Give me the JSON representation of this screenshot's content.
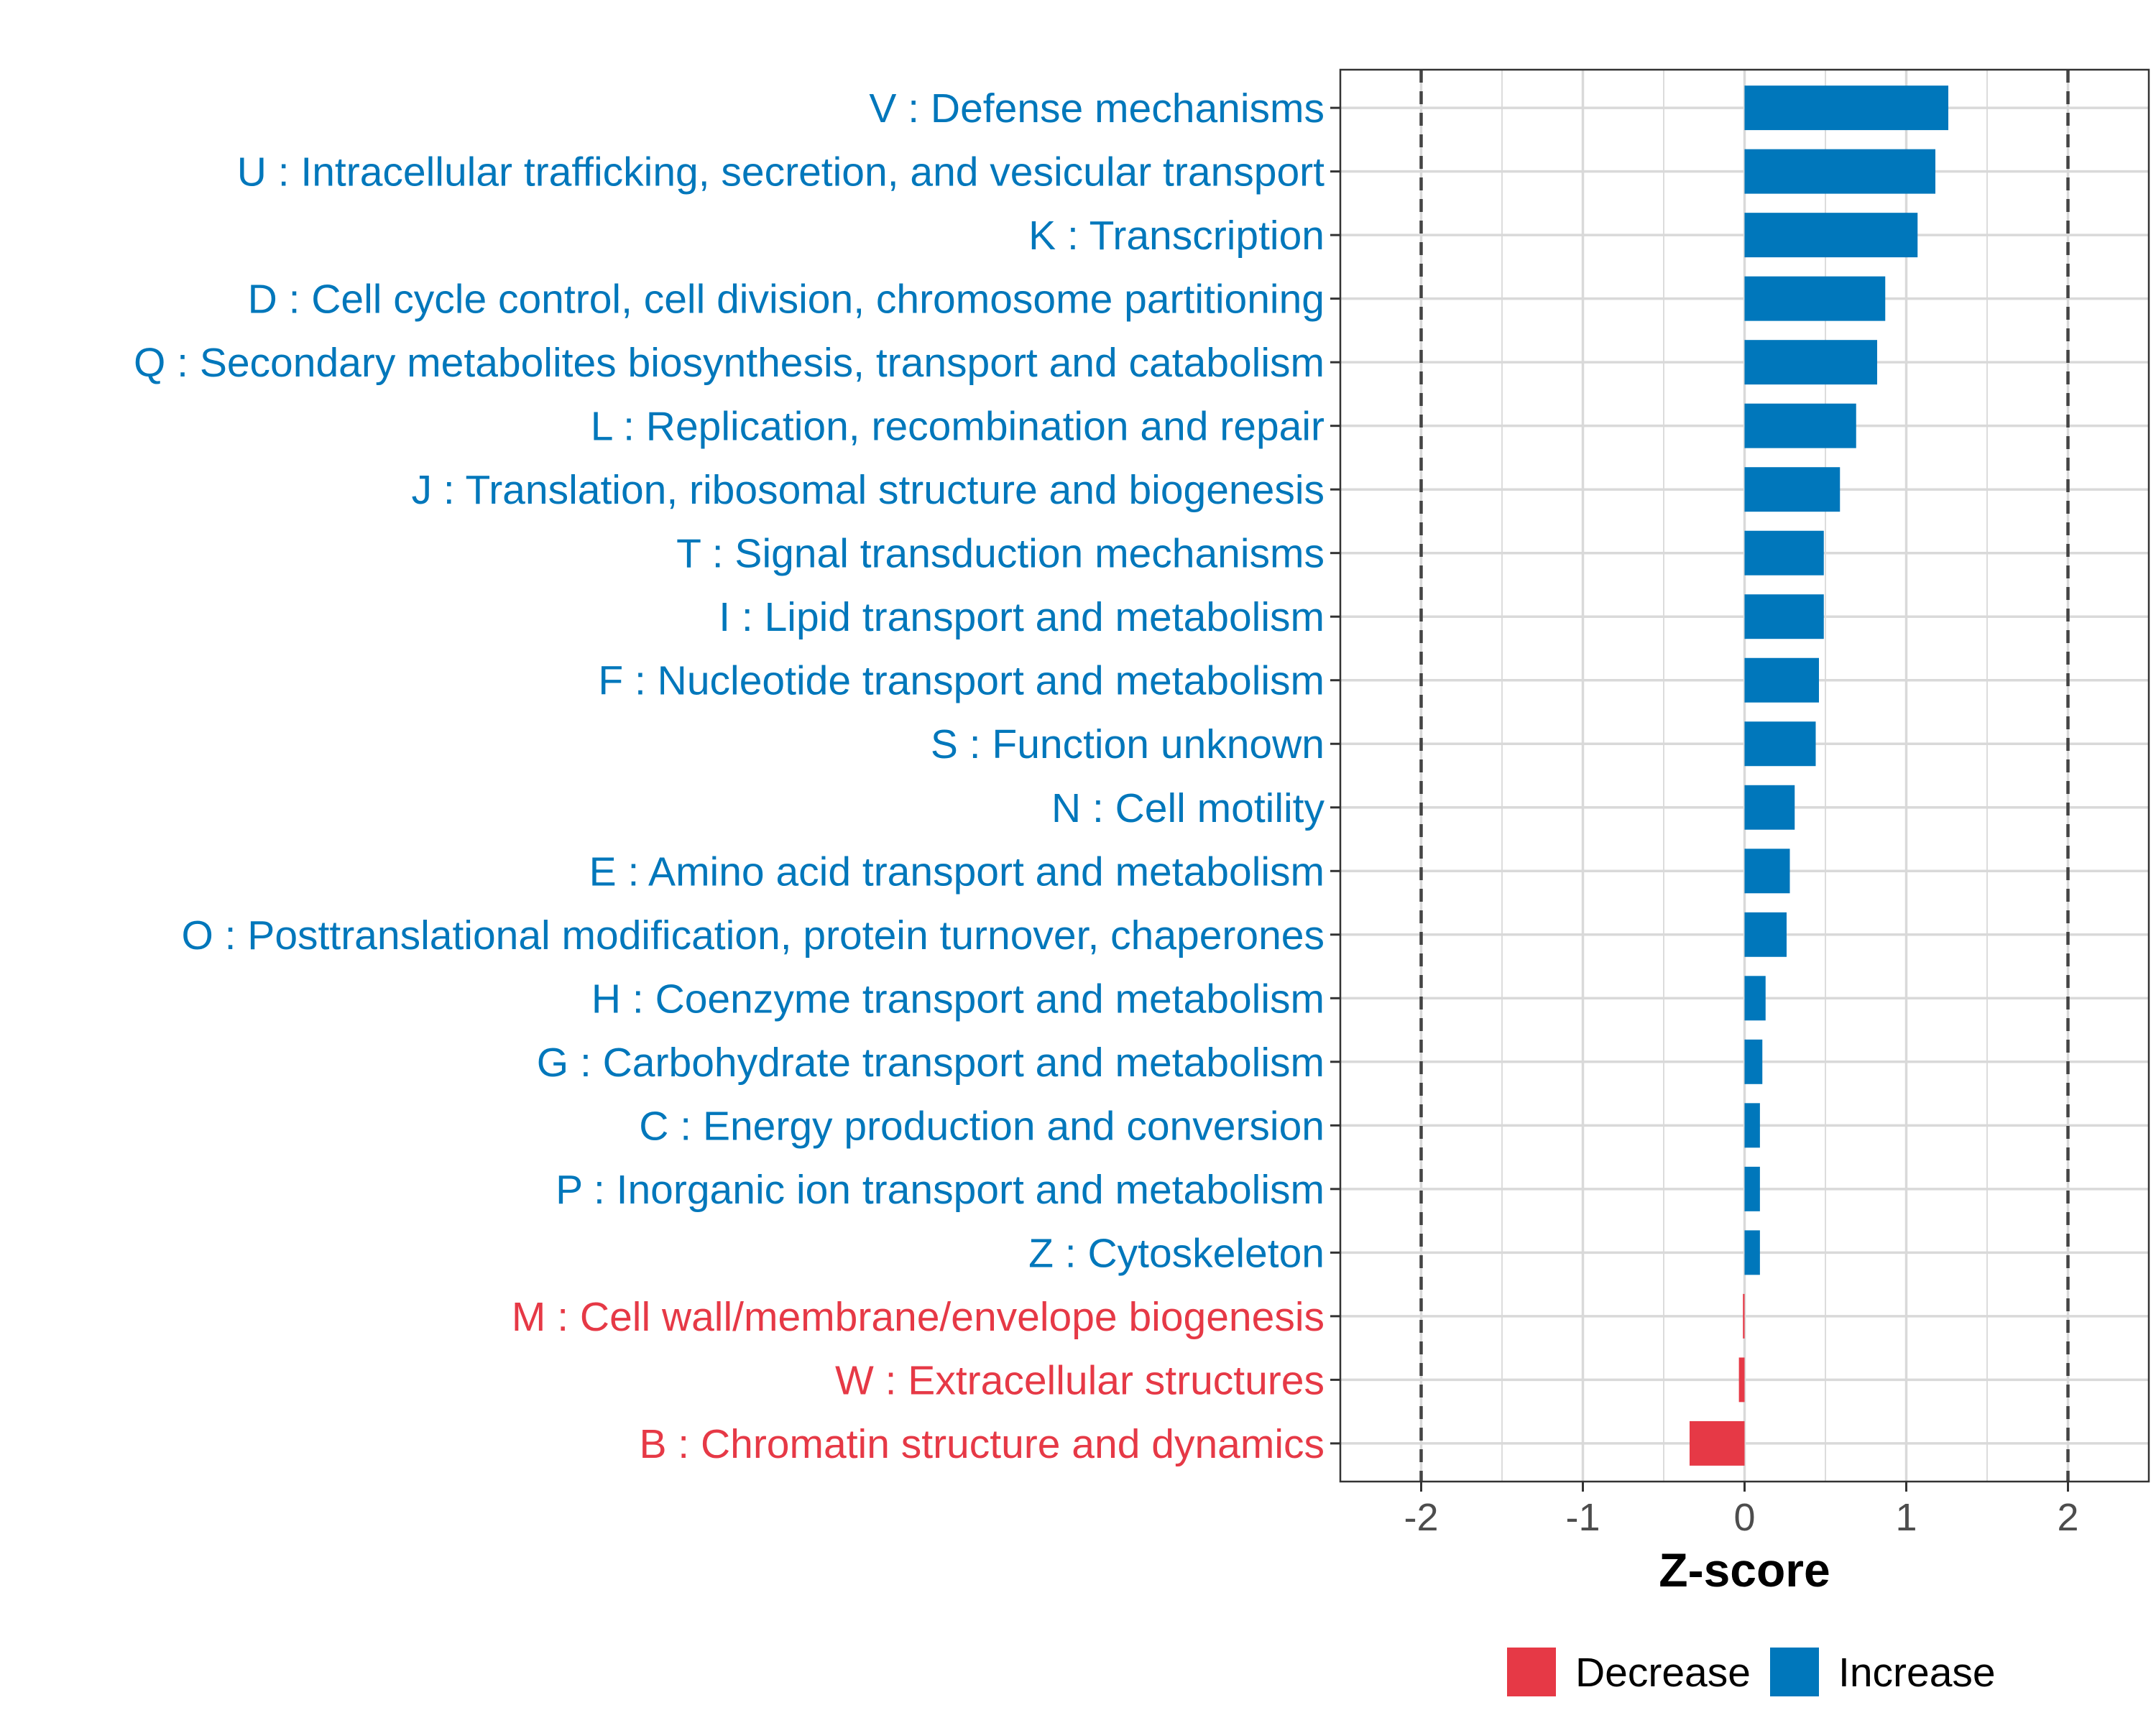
{
  "chart_data": {
    "type": "bar",
    "orientation": "horizontal",
    "xlabel": "Z-score",
    "ylabel": "",
    "xlim": [
      -2.5,
      2.5
    ],
    "x_ticks": [
      -2,
      -1,
      0,
      1,
      2
    ],
    "x_tick_labels": [
      "-2",
      "-1",
      "0",
      "1",
      "2"
    ],
    "reference_lines": [
      -2,
      2
    ],
    "grid": true,
    "legend_position": "bottom",
    "legend": [
      {
        "name": "Decrease",
        "color": "#e63946"
      },
      {
        "name": "Increase",
        "color": "#0077bb"
      }
    ],
    "categories": [
      "V : Defense mechanisms",
      "U : Intracellular trafficking, secretion, and vesicular transport",
      "K : Transcription",
      "D : Cell cycle control, cell division, chromosome partitioning",
      "Q : Secondary metabolites biosynthesis, transport and catabolism",
      "L : Replication, recombination and repair",
      "J : Translation, ribosomal structure and biogenesis",
      "T : Signal transduction mechanisms",
      "I : Lipid transport and metabolism",
      "F : Nucleotide transport and metabolism",
      "S : Function unknown",
      "N : Cell motility",
      "E : Amino acid transport and metabolism",
      "O : Posttranslational modification, protein turnover, chaperones",
      "H : Coenzyme transport and metabolism",
      "G : Carbohydrate transport and metabolism",
      "C : Energy production and conversion",
      "P : Inorganic ion transport and metabolism",
      "Z : Cytoskeleton",
      "M : Cell wall/membrane/envelope biogenesis",
      "W : Extracellular structures",
      "B : Chromatin structure and dynamics"
    ],
    "values": [
      1.26,
      1.18,
      1.07,
      0.87,
      0.82,
      0.69,
      0.59,
      0.49,
      0.49,
      0.46,
      0.44,
      0.31,
      0.28,
      0.26,
      0.13,
      0.11,
      0.095,
      0.095,
      0.095,
      -0.01,
      -0.035,
      -0.34
    ],
    "direction": [
      "Increase",
      "Increase",
      "Increase",
      "Increase",
      "Increase",
      "Increase",
      "Increase",
      "Increase",
      "Increase",
      "Increase",
      "Increase",
      "Increase",
      "Increase",
      "Increase",
      "Increase",
      "Increase",
      "Increase",
      "Increase",
      "Increase",
      "Decrease",
      "Decrease",
      "Decrease"
    ]
  },
  "colors": {
    "increase": "#0077bb",
    "decrease": "#e63946",
    "grid": "#d9d9d9",
    "axis_text": "#4d4d4d",
    "reference_line": "#444444",
    "panel_border": "#333333"
  }
}
